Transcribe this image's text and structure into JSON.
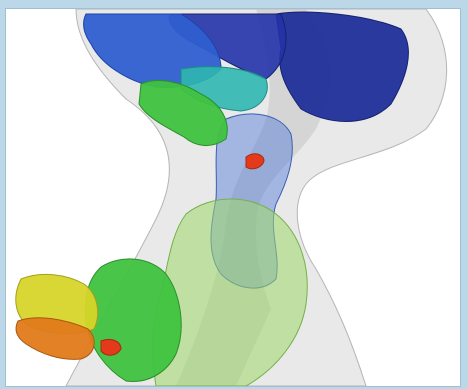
{
  "viewer": {
    "background": "#ffffff",
    "frame_color": "#bcd8e8",
    "scene": "3d-segmentation-rendering",
    "structures": [
      {
        "name": "translucent-bone-surface",
        "color": "#c9c9c9"
      },
      {
        "name": "dark-blue-segment",
        "color": "#1f2f9a"
      },
      {
        "name": "blue-segment",
        "color": "#2f5fd0"
      },
      {
        "name": "cyan-segment",
        "color": "#2fb7b0"
      },
      {
        "name": "green-segment",
        "color": "#3fc23f"
      },
      {
        "name": "light-green-segment",
        "color": "#9fd86a"
      },
      {
        "name": "yellow-segment",
        "color": "#d7d52a"
      },
      {
        "name": "orange-segment",
        "color": "#e07a1a"
      },
      {
        "name": "red-segment",
        "color": "#e23a1a"
      }
    ]
  }
}
